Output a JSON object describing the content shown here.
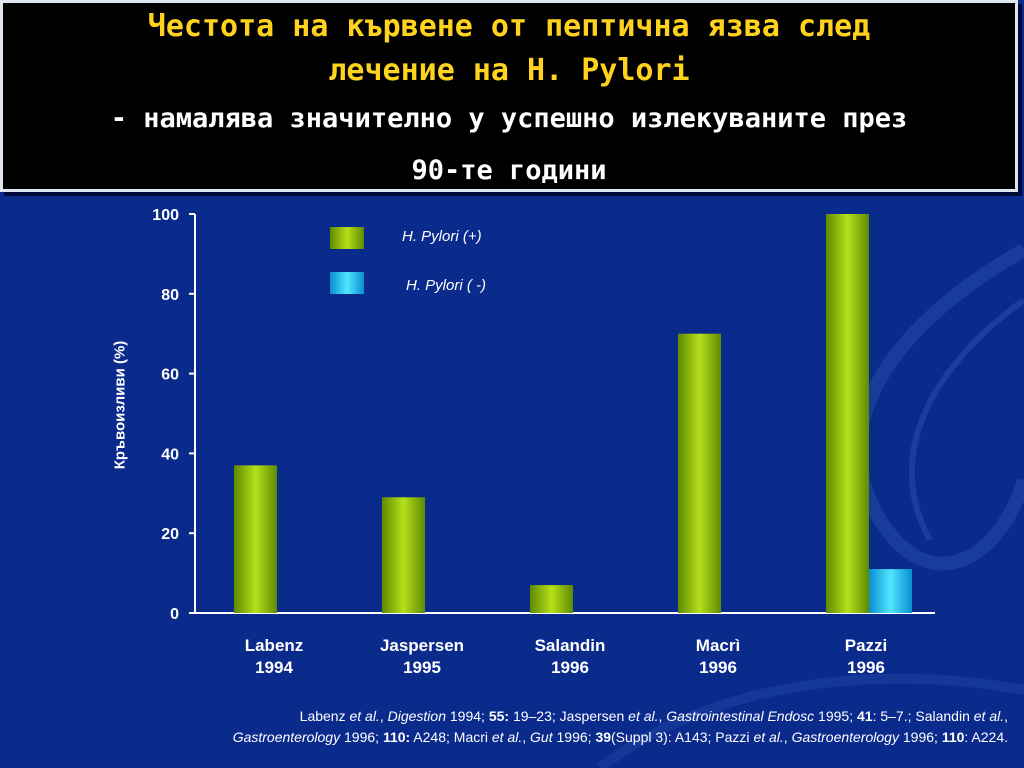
{
  "title": {
    "line1": "Честота на кървене от пептична язва след",
    "line2": "лечение на H. Pylori",
    "line3": "- намалява значително у успешно излекуваните през",
    "line4": "90-те години"
  },
  "colors": {
    "background": "#0a2a8c",
    "title_text": "#ffd21e",
    "positive_bar": "#8fbf0a",
    "negative_bar": "#1ec8f0"
  },
  "chart_data": {
    "type": "bar",
    "ylabel": "Кръвоизливи (%)",
    "ylim": [
      0,
      100
    ],
    "yticks": [
      "0",
      "20",
      "40",
      "60",
      "80",
      "100"
    ],
    "categories": [
      {
        "name": "Labenz",
        "year": "1994"
      },
      {
        "name": "Jaspersen",
        "year": "1995"
      },
      {
        "name": "Salandin",
        "year": "1996"
      },
      {
        "name": "Macrì",
        "year": "1996"
      },
      {
        "name": "Pazzi",
        "year": "1996"
      }
    ],
    "series": [
      {
        "name": "H. Pylori (+)",
        "values": [
          37,
          29,
          7,
          70,
          100
        ]
      },
      {
        "name": "H. Pylori ( -)",
        "values": [
          0,
          0,
          0,
          0,
          11
        ]
      }
    ],
    "legend": "top-left inside plot"
  },
  "references": {
    "part1": "Labenz ",
    "etal": "et al.",
    "r1a": ", ",
    "r1j": "Digestion",
    "r1b": " 1994; ",
    "r1v": "55:",
    "r1c": " 19–23; Jaspersen ",
    "r2a": ", ",
    "r2j": "Gastrointestinal Endosc",
    "r2b": " 1995; ",
    "r2v": "41",
    "r2c": ": 5–7.; Salandin ",
    "r3a": ",",
    "r3j": "Gastroenterology",
    "r3b": " 1996; ",
    "r3v": "110:",
    "r3c": " A248; Macri ",
    "r4a": ", ",
    "r4j": "Gut",
    "r4b": " 1996; ",
    "r4v": "39",
    "r4c": "(Suppl 3): A143; Pazzi ",
    "r5a": ", ",
    "r5j": "Gastroenterology",
    "r5b": " 1996; ",
    "r5v": "110",
    "r5c": ": A224."
  }
}
